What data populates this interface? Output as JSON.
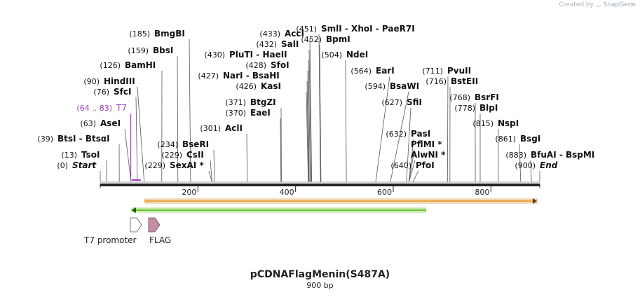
{
  "credit": {
    "prefix": "Created by",
    "brand": "SnapGene"
  },
  "plasmid": {
    "name": "pCDNAFlagMenin(S487A)",
    "length_label": "900 bp",
    "length": 900
  },
  "sites": [
    {
      "label": "Start",
      "pos": 0,
      "pos_label": "(0)",
      "italic": true
    },
    {
      "label": "TsoI",
      "pos": 13,
      "pos_label": "(13)"
    },
    {
      "label": "BtsI - BtsαI",
      "pos": 39,
      "pos_label": "(39)"
    },
    {
      "label": "AseI",
      "pos": 63,
      "pos_label": "(63)"
    },
    {
      "label": "T7",
      "pos": 64,
      "pos_label": "(64 .. 83)",
      "primer": true
    },
    {
      "label": "SfcI",
      "pos": 76,
      "pos_label": "(76)"
    },
    {
      "label": "HindIII",
      "pos": 90,
      "pos_label": "(90)"
    },
    {
      "label": "BamHI",
      "pos": 126,
      "pos_label": "(126)"
    },
    {
      "label": "BbsI",
      "pos": 159,
      "pos_label": "(159)"
    },
    {
      "label": "BmgBI",
      "pos": 185,
      "pos_label": "(185)"
    },
    {
      "label": "SexAI *",
      "pos": 229,
      "pos_label": "(229)"
    },
    {
      "label": "CsII",
      "pos": 229,
      "pos_label": "(229)"
    },
    {
      "label": "BseRI",
      "pos": 234,
      "pos_label": "(234)"
    },
    {
      "label": "AclI",
      "pos": 301,
      "pos_label": "(301)"
    },
    {
      "label": "EaeI",
      "pos": 370,
      "pos_label": "(370)"
    },
    {
      "label": "BtgZI",
      "pos": 371,
      "pos_label": "(371)"
    },
    {
      "label": "KasI",
      "pos": 426,
      "pos_label": "(426)"
    },
    {
      "label": "NarI - BsaHI",
      "pos": 427,
      "pos_label": "(427)"
    },
    {
      "label": "SfoI",
      "pos": 428,
      "pos_label": "(428)"
    },
    {
      "label": "PluTI - HaeII",
      "pos": 430,
      "pos_label": "(430)"
    },
    {
      "label": "SalI",
      "pos": 432,
      "pos_label": "(432)"
    },
    {
      "label": "AccI",
      "pos": 433,
      "pos_label": "(433)"
    },
    {
      "label": "SmlI - XhoI - PaeR7I",
      "pos": 451,
      "pos_label": "(451)"
    },
    {
      "label": "BpmI",
      "pos": 452,
      "pos_label": "(452)"
    },
    {
      "label": "NdeI",
      "pos": 504,
      "pos_label": "(504)"
    },
    {
      "label": "EarI",
      "pos": 564,
      "pos_label": "(564)"
    },
    {
      "label": "BsaWI",
      "pos": 594,
      "pos_label": "(594)"
    },
    {
      "label": "SfiI",
      "pos": 627,
      "pos_label": "(627)"
    },
    {
      "label": "PasI",
      "pos": 632,
      "pos_label": "(632)"
    },
    {
      "label": "PflMI *",
      "pos": 632,
      "pos_label": ""
    },
    {
      "label": "AlwNI *",
      "pos": 632,
      "pos_label": ""
    },
    {
      "label": "PfoI",
      "pos": 640,
      "pos_label": "(640)"
    },
    {
      "label": "PvuII",
      "pos": 711,
      "pos_label": "(711)"
    },
    {
      "label": "BstEII",
      "pos": 716,
      "pos_label": "(716)"
    },
    {
      "label": "BsrFI",
      "pos": 768,
      "pos_label": "(768)"
    },
    {
      "label": "BlpI",
      "pos": 778,
      "pos_label": "(778)"
    },
    {
      "label": "NspI",
      "pos": 815,
      "pos_label": "(815)"
    },
    {
      "label": "BsgI",
      "pos": 861,
      "pos_label": "(861)"
    },
    {
      "label": "BfuAI - BspMI",
      "pos": 883,
      "pos_label": "(883)"
    },
    {
      "label": "End",
      "pos": 900,
      "pos_label": "(900)",
      "italic": true
    }
  ],
  "ticks": [
    {
      "pos": 200,
      "label": "200"
    },
    {
      "pos": 400,
      "label": "400"
    },
    {
      "pos": 600,
      "label": "600"
    },
    {
      "pos": 800,
      "label": "800"
    }
  ],
  "orf_bar": {
    "start": 97,
    "end": 900,
    "color": "#e8a040"
  },
  "green_bar": {
    "start": 63,
    "end": 670,
    "color": "#6abf2e"
  },
  "features": [
    {
      "name": "T7 promoter",
      "pos": 64,
      "color": "#ffffff"
    },
    {
      "name": "FLAG",
      "pos": 100,
      "color": "#c98aa4"
    }
  ],
  "colors": {
    "primer": "#a040c0",
    "backbone": "#222222",
    "label": "#111111"
  }
}
